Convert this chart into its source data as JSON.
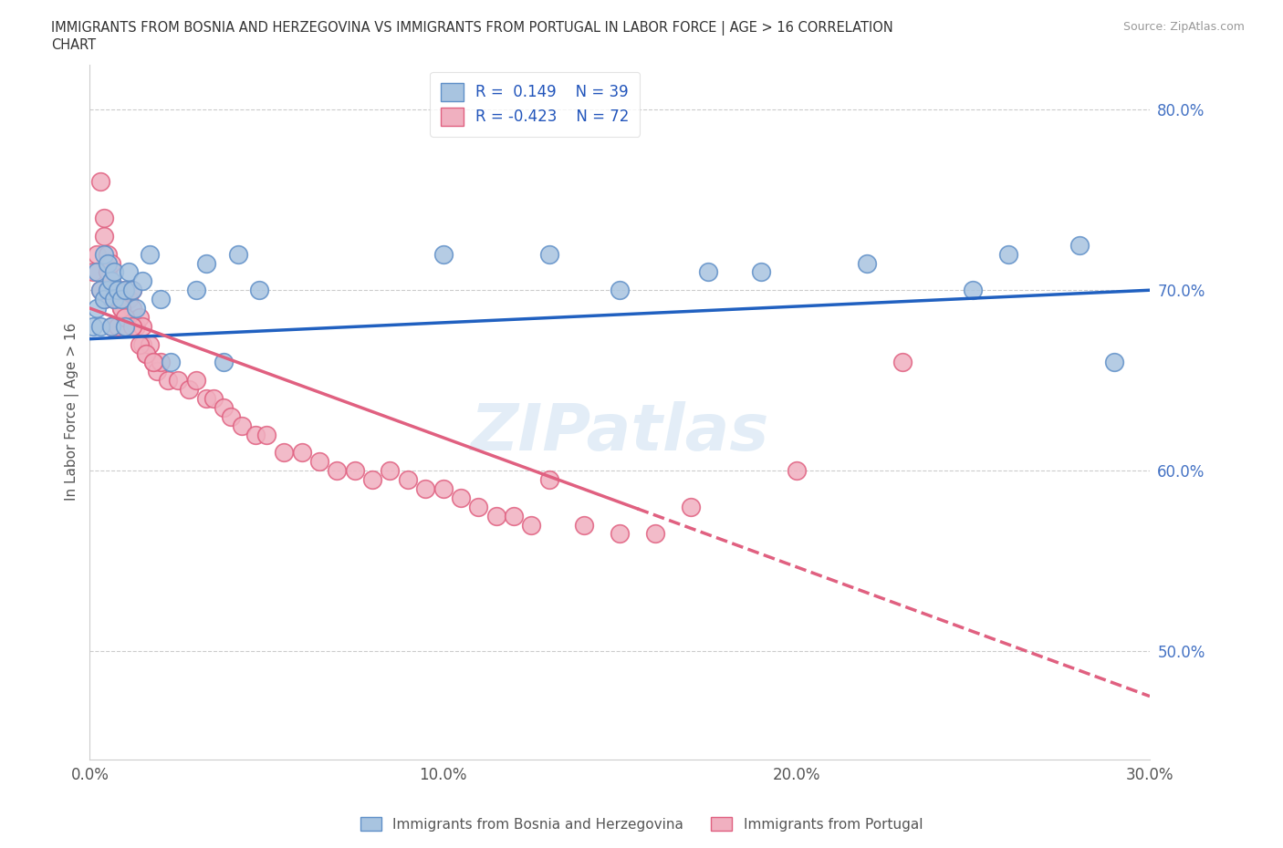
{
  "title_line1": "IMMIGRANTS FROM BOSNIA AND HERZEGOVINA VS IMMIGRANTS FROM PORTUGAL IN LABOR FORCE | AGE > 16 CORRELATION",
  "title_line2": "CHART",
  "source_text": "Source: ZipAtlas.com",
  "ylabel": "In Labor Force | Age > 16",
  "xlim": [
    0.0,
    0.3
  ],
  "ylim": [
    0.44,
    0.825
  ],
  "xticks": [
    0.0,
    0.05,
    0.1,
    0.15,
    0.2,
    0.25,
    0.3
  ],
  "yticks": [
    0.5,
    0.6,
    0.7,
    0.8
  ],
  "ytick_labels": [
    "50.0%",
    "60.0%",
    "70.0%",
    "80.0%"
  ],
  "xtick_labels": [
    "0.0%",
    "",
    "10.0%",
    "",
    "20.0%",
    "",
    "30.0%"
  ],
  "bosnia_color": "#a8c4e0",
  "portugal_color": "#f0b0c0",
  "bosnia_edge": "#6090c8",
  "portugal_edge": "#e06080",
  "trend_blue": "#2060c0",
  "trend_pink": "#e06080",
  "R_bosnia": 0.149,
  "N_bosnia": 39,
  "R_portugal": -0.423,
  "N_portugal": 72,
  "legend_label_bosnia": "Immigrants from Bosnia and Herzegovina",
  "legend_label_portugal": "Immigrants from Portugal",
  "watermark": "ZIPatlas",
  "bosnia_x": [
    0.001,
    0.002,
    0.002,
    0.003,
    0.003,
    0.004,
    0.004,
    0.005,
    0.005,
    0.006,
    0.006,
    0.007,
    0.007,
    0.008,
    0.009,
    0.01,
    0.01,
    0.011,
    0.012,
    0.013,
    0.015,
    0.017,
    0.02,
    0.023,
    0.03,
    0.033,
    0.038,
    0.042,
    0.048,
    0.13,
    0.15,
    0.175,
    0.22,
    0.26,
    0.28,
    0.25,
    0.19,
    0.1,
    0.29
  ],
  "bosnia_y": [
    0.68,
    0.69,
    0.71,
    0.7,
    0.68,
    0.72,
    0.695,
    0.7,
    0.715,
    0.705,
    0.68,
    0.695,
    0.71,
    0.7,
    0.695,
    0.68,
    0.7,
    0.71,
    0.7,
    0.69,
    0.705,
    0.72,
    0.695,
    0.66,
    0.7,
    0.715,
    0.66,
    0.72,
    0.7,
    0.72,
    0.7,
    0.71,
    0.715,
    0.72,
    0.725,
    0.7,
    0.71,
    0.72,
    0.66
  ],
  "portugal_x": [
    0.001,
    0.002,
    0.003,
    0.003,
    0.004,
    0.004,
    0.005,
    0.005,
    0.006,
    0.006,
    0.007,
    0.008,
    0.008,
    0.009,
    0.01,
    0.01,
    0.011,
    0.012,
    0.012,
    0.013,
    0.014,
    0.015,
    0.015,
    0.016,
    0.017,
    0.018,
    0.019,
    0.02,
    0.022,
    0.025,
    0.028,
    0.03,
    0.033,
    0.035,
    0.038,
    0.04,
    0.043,
    0.047,
    0.05,
    0.055,
    0.06,
    0.065,
    0.07,
    0.075,
    0.08,
    0.085,
    0.09,
    0.095,
    0.1,
    0.105,
    0.11,
    0.115,
    0.12,
    0.125,
    0.13,
    0.14,
    0.15,
    0.16,
    0.17,
    0.2,
    0.004,
    0.005,
    0.006,
    0.007,
    0.008,
    0.009,
    0.01,
    0.012,
    0.014,
    0.016,
    0.018,
    0.23
  ],
  "portugal_y": [
    0.71,
    0.72,
    0.7,
    0.76,
    0.73,
    0.695,
    0.7,
    0.71,
    0.705,
    0.68,
    0.695,
    0.68,
    0.7,
    0.69,
    0.7,
    0.68,
    0.695,
    0.69,
    0.7,
    0.68,
    0.685,
    0.67,
    0.68,
    0.665,
    0.67,
    0.66,
    0.655,
    0.66,
    0.65,
    0.65,
    0.645,
    0.65,
    0.64,
    0.64,
    0.635,
    0.63,
    0.625,
    0.62,
    0.62,
    0.61,
    0.61,
    0.605,
    0.6,
    0.6,
    0.595,
    0.6,
    0.595,
    0.59,
    0.59,
    0.585,
    0.58,
    0.575,
    0.575,
    0.57,
    0.595,
    0.57,
    0.565,
    0.565,
    0.58,
    0.6,
    0.74,
    0.72,
    0.715,
    0.7,
    0.695,
    0.69,
    0.685,
    0.68,
    0.67,
    0.665,
    0.66,
    0.66
  ],
  "trend_blue_x0": 0.0,
  "trend_blue_y0": 0.673,
  "trend_blue_x1": 0.3,
  "trend_blue_y1": 0.7,
  "trend_pink_x0": 0.0,
  "trend_pink_y0": 0.69,
  "trend_pink_x1": 0.3,
  "trend_pink_y1": 0.475,
  "trend_solid_end": 0.155
}
